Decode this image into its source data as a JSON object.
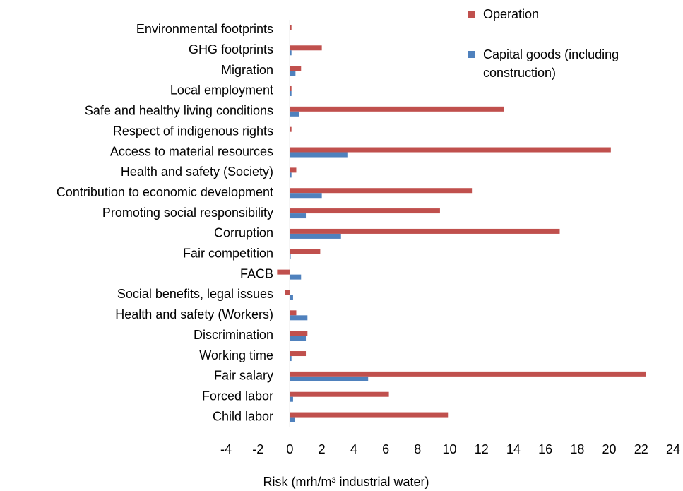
{
  "chart_data": {
    "type": "bar",
    "orientation": "horizontal",
    "x_label": "Risk (mrh/m³ industrial water)",
    "categories": [
      "Environmental footprints",
      "GHG footprints",
      "Migration",
      "Local employment",
      "Safe and healthy living conditions",
      "Respect of indigenous rights",
      "Access to material resources",
      "Health and safety (Society)",
      "Contribution to economic development",
      "Promoting social responsibility",
      "Corruption",
      "Fair competition",
      "FACB",
      "Social benefits, legal issues",
      "Health and safety (Workers)",
      "Discrimination",
      "Working time",
      "Fair salary",
      "Forced labor",
      "Child labor"
    ],
    "series": [
      {
        "name": "Operation",
        "color": "#c0504d",
        "values": [
          0.1,
          2.0,
          0.7,
          0.1,
          13.4,
          0.1,
          20.1,
          0.4,
          11.4,
          9.4,
          16.9,
          1.9,
          -0.8,
          -0.3,
          0.4,
          1.1,
          1.0,
          22.3,
          6.2,
          9.9
        ]
      },
      {
        "name": "Capital goods (including construction)",
        "color": "#4f81bd",
        "values": [
          0,
          0.1,
          0.35,
          0.1,
          0.6,
          0,
          3.6,
          0.1,
          2.0,
          1.0,
          3.2,
          0.05,
          0.7,
          0.2,
          1.1,
          1.0,
          0.1,
          4.9,
          0.2,
          0.3
        ]
      }
    ],
    "xlim": [
      -4,
      24
    ],
    "xticks": [
      -4,
      -2,
      0,
      2,
      4,
      6,
      8,
      10,
      12,
      14,
      16,
      18,
      20,
      22,
      24
    ],
    "legend": "top-right"
  }
}
